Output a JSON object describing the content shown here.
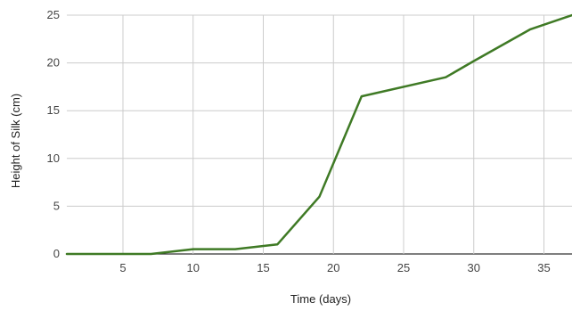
{
  "chart_data": {
    "type": "line",
    "title": "",
    "xlabel": "Time (days)",
    "ylabel": "Height of Silk (cm)",
    "xlim": [
      1,
      37
    ],
    "ylim": [
      0,
      25
    ],
    "xticks": [
      5,
      10,
      15,
      20,
      25,
      30,
      35
    ],
    "yticks": [
      0,
      5,
      10,
      15,
      20,
      25
    ],
    "grid": true,
    "legend": "none",
    "series": [
      {
        "color": "#3f7a25",
        "x": [
          1,
          7,
          10,
          13,
          16,
          19,
          22,
          28,
          30,
          34,
          37
        ],
        "y": [
          0,
          0,
          0.5,
          0.5,
          1,
          6,
          16.5,
          18.5,
          20.2,
          23.5,
          25
        ]
      }
    ]
  }
}
